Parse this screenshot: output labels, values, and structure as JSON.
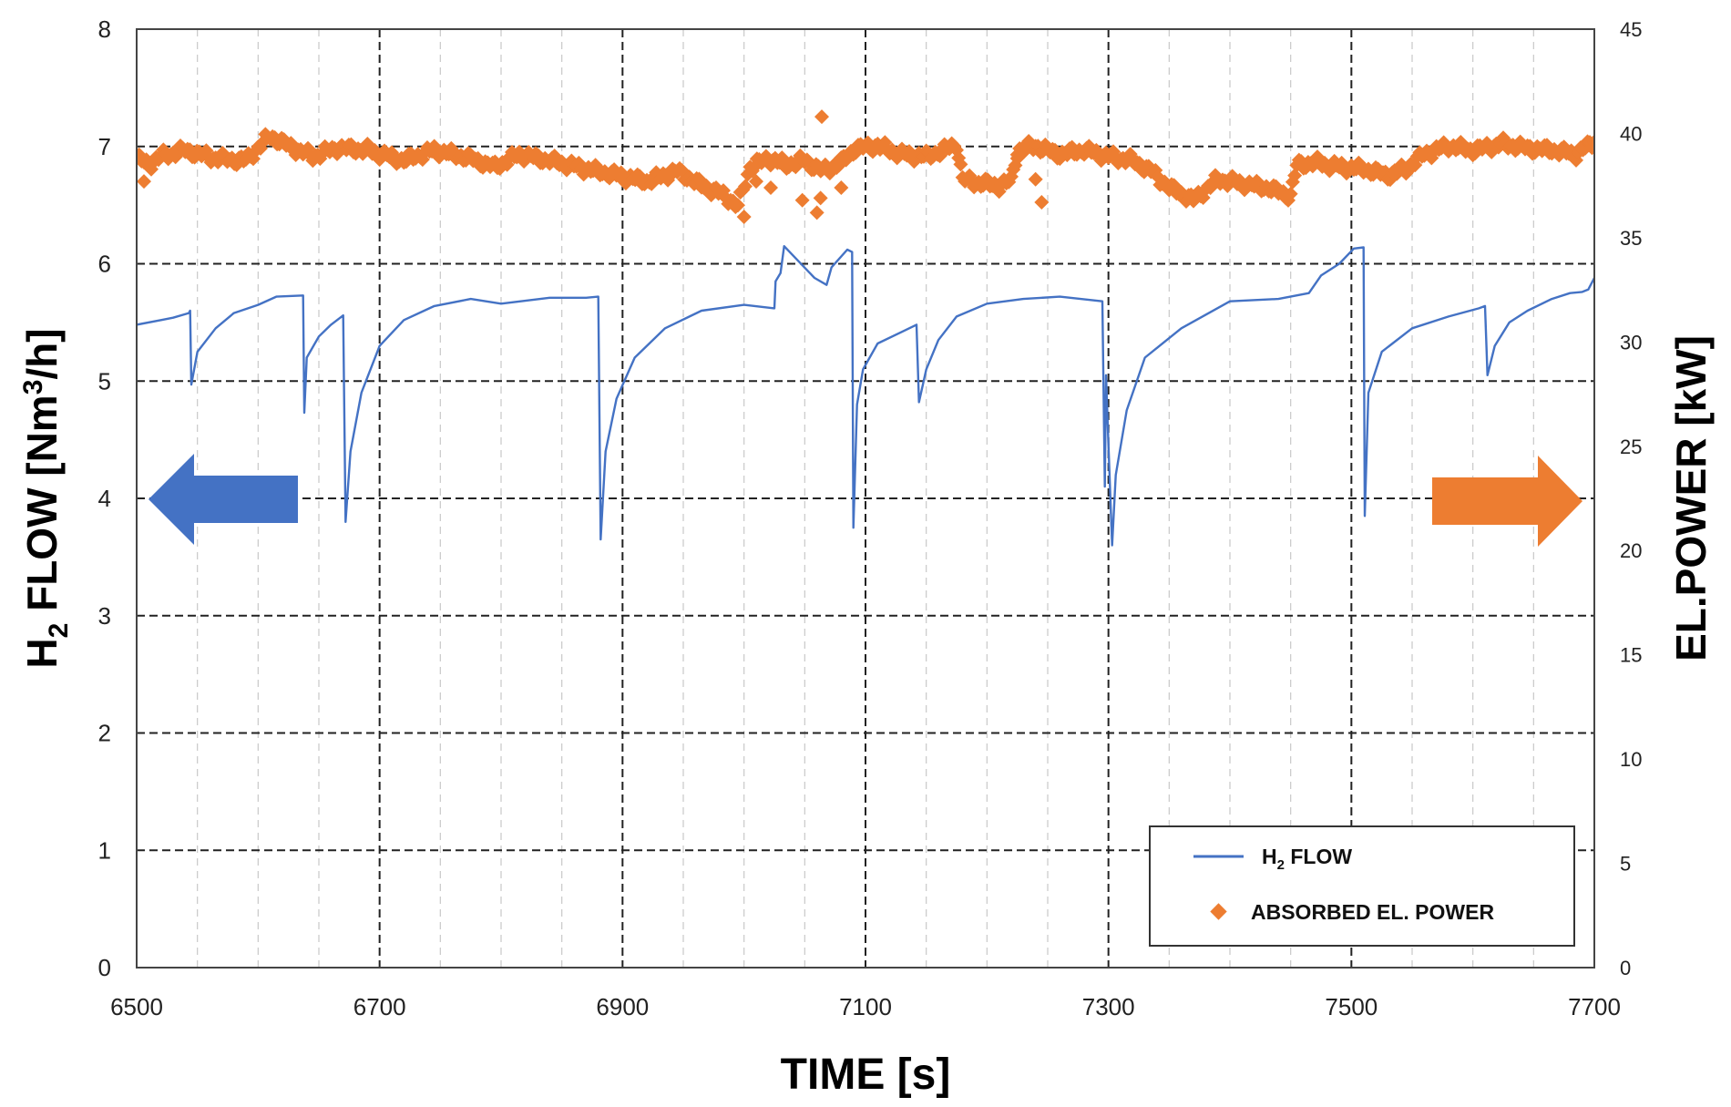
{
  "chart_data": {
    "type": "line",
    "xlabel": "TIME [s]",
    "ylabel_left": {
      "main": "H",
      "sub": "2",
      "rest": " FLOW [Nm",
      "sup": "3",
      "end": "/h]"
    },
    "ylabel_right": "EL.POWER [kW]",
    "xlim": [
      6500,
      7700
    ],
    "ylim_left": [
      0,
      8
    ],
    "ylim_right": [
      0,
      45
    ],
    "x_ticks": [
      "6500",
      "6700",
      "6900",
      "7100",
      "7300",
      "7500",
      "7700"
    ],
    "y_ticks_left": [
      "0",
      "1",
      "2",
      "3",
      "4",
      "5",
      "6",
      "7",
      "8"
    ],
    "y_ticks_right": [
      "0",
      "5",
      "10",
      "15",
      "20",
      "25",
      "30",
      "35",
      "40",
      "45"
    ],
    "grid": true,
    "legend_position": "bottom-right",
    "legend": [
      {
        "main": "H",
        "sub": "2",
        "rest": " FLOW"
      },
      {
        "main": "ABSORBED EL. POWER"
      }
    ],
    "colors": {
      "h2_flow": "#4472c4",
      "power": "#ed7d31",
      "arrow_left": "#4472c4",
      "arrow_right": "#ed7d31"
    },
    "series": [
      {
        "name": "H2 FLOW",
        "axis": "left",
        "style": "line",
        "points": [
          [
            6500,
            5.48
          ],
          [
            6520,
            5.52
          ],
          [
            6530,
            5.54
          ],
          [
            6543,
            5.58
          ],
          [
            6544,
            5.6
          ],
          [
            6545,
            4.97
          ],
          [
            6550,
            5.25
          ],
          [
            6565,
            5.45
          ],
          [
            6580,
            5.58
          ],
          [
            6600,
            5.65
          ],
          [
            6615,
            5.72
          ],
          [
            6637,
            5.73
          ],
          [
            6638,
            4.73
          ],
          [
            6640,
            5.2
          ],
          [
            6650,
            5.38
          ],
          [
            6660,
            5.48
          ],
          [
            6670,
            5.56
          ],
          [
            6672,
            3.8
          ],
          [
            6676,
            4.4
          ],
          [
            6685,
            4.9
          ],
          [
            6700,
            5.3
          ],
          [
            6720,
            5.52
          ],
          [
            6745,
            5.64
          ],
          [
            6775,
            5.7
          ],
          [
            6800,
            5.66
          ],
          [
            6840,
            5.71
          ],
          [
            6870,
            5.71
          ],
          [
            6880,
            5.72
          ],
          [
            6882,
            3.65
          ],
          [
            6886,
            4.4
          ],
          [
            6895,
            4.85
          ],
          [
            6910,
            5.2
          ],
          [
            6935,
            5.45
          ],
          [
            6965,
            5.6
          ],
          [
            7000,
            5.65
          ],
          [
            7025,
            5.62
          ],
          [
            7026,
            5.85
          ],
          [
            7030,
            5.92
          ],
          [
            7033,
            6.15
          ],
          [
            7045,
            6.02
          ],
          [
            7058,
            5.88
          ],
          [
            7068,
            5.82
          ],
          [
            7072,
            5.97
          ],
          [
            7085,
            6.12
          ],
          [
            7089,
            6.1
          ],
          [
            7090,
            3.75
          ],
          [
            7093,
            4.8
          ],
          [
            7098,
            5.1
          ],
          [
            7110,
            5.32
          ],
          [
            7130,
            5.42
          ],
          [
            7142,
            5.48
          ],
          [
            7144,
            4.82
          ],
          [
            7150,
            5.1
          ],
          [
            7160,
            5.35
          ],
          [
            7175,
            5.55
          ],
          [
            7200,
            5.66
          ],
          [
            7230,
            5.7
          ],
          [
            7260,
            5.72
          ],
          [
            7295,
            5.68
          ],
          [
            7297,
            4.1
          ],
          [
            7298,
            5.05
          ],
          [
            7300,
            4.45
          ],
          [
            7303,
            3.6
          ],
          [
            7306,
            4.2
          ],
          [
            7315,
            4.75
          ],
          [
            7330,
            5.2
          ],
          [
            7360,
            5.45
          ],
          [
            7400,
            5.68
          ],
          [
            7440,
            5.7
          ],
          [
            7465,
            5.75
          ],
          [
            7475,
            5.9
          ],
          [
            7490,
            6.0
          ],
          [
            7502,
            6.13
          ],
          [
            7510,
            6.14
          ],
          [
            7511,
            3.85
          ],
          [
            7514,
            4.9
          ],
          [
            7525,
            5.25
          ],
          [
            7550,
            5.45
          ],
          [
            7580,
            5.55
          ],
          [
            7605,
            5.62
          ],
          [
            7610,
            5.64
          ],
          [
            7612,
            5.05
          ],
          [
            7618,
            5.3
          ],
          [
            7630,
            5.5
          ],
          [
            7645,
            5.6
          ],
          [
            7665,
            5.7
          ],
          [
            7680,
            5.75
          ],
          [
            7690,
            5.76
          ],
          [
            7695,
            5.78
          ],
          [
            7700,
            5.88
          ]
        ]
      },
      {
        "name": "ABSORBED EL. POWER",
        "axis": "right",
        "style": "markers",
        "points": [
          [
            6500,
            38.8
          ],
          [
            6510,
            38.5
          ],
          [
            6520,
            38.9
          ],
          [
            6540,
            39.2
          ],
          [
            6565,
            38.8
          ],
          [
            6590,
            38.7
          ],
          [
            6610,
            39.9
          ],
          [
            6625,
            39.4
          ],
          [
            6645,
            38.9
          ],
          [
            6665,
            39.3
          ],
          [
            6690,
            39.2
          ],
          [
            6720,
            38.7
          ],
          [
            6745,
            39.2
          ],
          [
            6775,
            38.8
          ],
          [
            6795,
            38.4
          ],
          [
            6815,
            39.0
          ],
          [
            6840,
            38.7
          ],
          [
            6870,
            38.3
          ],
          [
            6895,
            38.0
          ],
          [
            6920,
            37.7
          ],
          [
            6945,
            38.2
          ],
          [
            6965,
            37.5
          ],
          [
            6985,
            37.0
          ],
          [
            6995,
            36.5
          ],
          [
            7005,
            38.4
          ],
          [
            7020,
            38.8
          ],
          [
            7035,
            38.5
          ],
          [
            7050,
            38.7
          ],
          [
            7065,
            38.2
          ],
          [
            7080,
            38.6
          ],
          [
            7092,
            39.3
          ],
          [
            7110,
            39.4
          ],
          [
            7130,
            39.0
          ],
          [
            7150,
            38.9
          ],
          [
            7165,
            39.2
          ],
          [
            7175,
            39.5
          ],
          [
            7180,
            37.8
          ],
          [
            7195,
            37.6
          ],
          [
            7210,
            37.5
          ],
          [
            7220,
            37.7
          ],
          [
            7225,
            39.2
          ],
          [
            7240,
            39.4
          ],
          [
            7260,
            39.0
          ],
          [
            7280,
            39.2
          ],
          [
            7300,
            38.9
          ],
          [
            7320,
            38.7
          ],
          [
            7335,
            38.2
          ],
          [
            7350,
            37.4
          ],
          [
            7370,
            36.8
          ],
          [
            7390,
            37.8
          ],
          [
            7410,
            37.6
          ],
          [
            7430,
            37.4
          ],
          [
            7450,
            37.0
          ],
          [
            7455,
            38.5
          ],
          [
            7470,
            38.6
          ],
          [
            7490,
            38.4
          ],
          [
            7510,
            38.3
          ],
          [
            7530,
            38.0
          ],
          [
            7545,
            38.3
          ],
          [
            7560,
            39.0
          ],
          [
            7580,
            39.4
          ],
          [
            7600,
            39.2
          ],
          [
            7625,
            39.5
          ],
          [
            7645,
            39.3
          ],
          [
            7665,
            39.2
          ],
          [
            7685,
            39.0
          ],
          [
            7700,
            39.6
          ]
        ],
        "outliers": [
          [
            6506,
            37.7
          ],
          [
            7000,
            36.0
          ],
          [
            7010,
            37.7
          ],
          [
            7022,
            37.4
          ],
          [
            7048,
            36.8
          ],
          [
            7060,
            36.2
          ],
          [
            7063,
            36.9
          ],
          [
            7064,
            40.8
          ],
          [
            7070,
            38.2
          ],
          [
            7080,
            37.4
          ],
          [
            7110,
            39.5
          ],
          [
            7240,
            37.8
          ],
          [
            7245,
            36.7
          ],
          [
            7225,
            38.8
          ]
        ]
      }
    ]
  }
}
